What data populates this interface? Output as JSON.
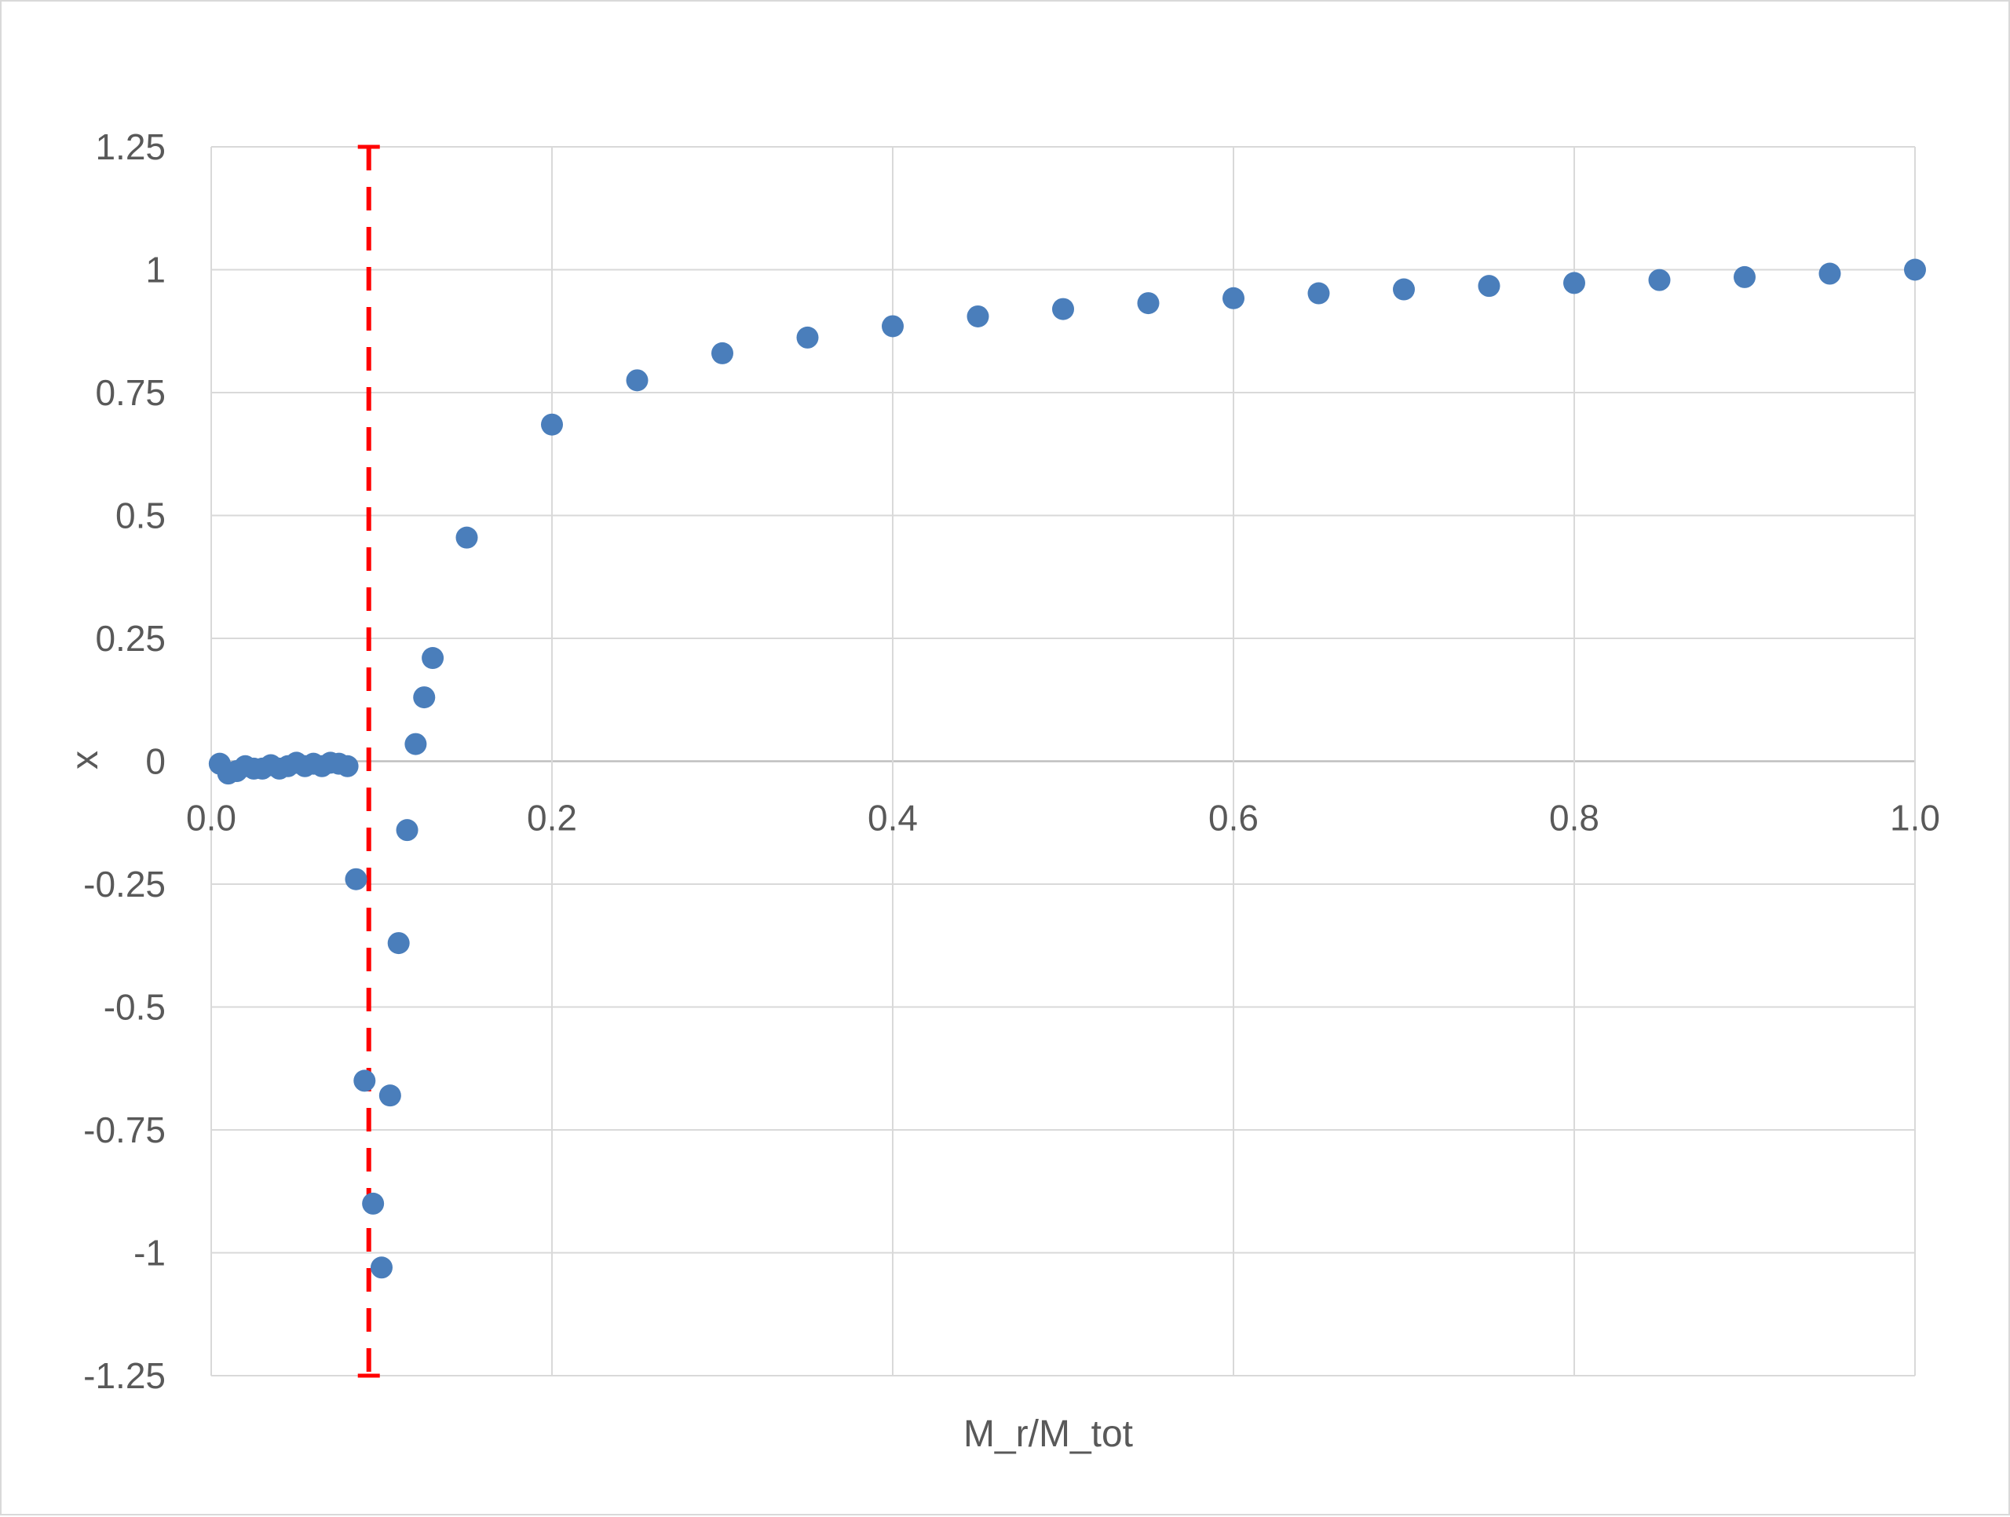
{
  "chart_data": {
    "type": "scatter",
    "title": "",
    "xlabel": "M_r/M_tot",
    "ylabel": "x",
    "xlim": [
      0,
      1
    ],
    "ylim": [
      -1.25,
      1.25
    ],
    "x_ticks": [
      "0.0",
      "0.2",
      "0.4",
      "0.6",
      "0.8",
      "1.0"
    ],
    "x_tick_values": [
      0,
      0.2,
      0.4,
      0.6,
      0.8,
      1.0
    ],
    "y_ticks": [
      "1.25",
      "1",
      "0.75",
      "0.5",
      "0.25",
      "0",
      "-0.25",
      "-0.5",
      "-0.75",
      "-1",
      "-1.25"
    ],
    "y_tick_values": [
      1.25,
      1,
      0.75,
      0.5,
      0.25,
      0,
      -0.25,
      -0.5,
      -0.75,
      -1,
      -1.25
    ],
    "grid": true,
    "legend": "none",
    "marker_color": "#4a7ebb",
    "reference_line": {
      "style": "dashed",
      "color": "#ff0000",
      "x": 0.0925,
      "y_range": [
        -1.25,
        1.25
      ]
    },
    "series": [
      {
        "points": [
          [
            0.005,
            -0.005
          ],
          [
            0.01,
            -0.025
          ],
          [
            0.015,
            -0.02
          ],
          [
            0.02,
            -0.01
          ],
          [
            0.025,
            -0.015
          ],
          [
            0.03,
            -0.015
          ],
          [
            0.035,
            -0.008
          ],
          [
            0.04,
            -0.015
          ],
          [
            0.045,
            -0.01
          ],
          [
            0.05,
            -0.003
          ],
          [
            0.055,
            -0.01
          ],
          [
            0.06,
            -0.005
          ],
          [
            0.065,
            -0.01
          ],
          [
            0.07,
            -0.003
          ],
          [
            0.075,
            -0.005
          ],
          [
            0.08,
            -0.01
          ],
          [
            0.085,
            -0.24
          ],
          [
            0.09,
            -0.65
          ],
          [
            0.095,
            -0.9
          ],
          [
            0.1,
            -1.03
          ],
          [
            0.105,
            -0.68
          ],
          [
            0.11,
            -0.37
          ],
          [
            0.115,
            -0.14
          ],
          [
            0.12,
            0.035
          ],
          [
            0.125,
            0.13
          ],
          [
            0.13,
            0.21
          ],
          [
            0.15,
            0.455
          ],
          [
            0.2,
            0.685
          ],
          [
            0.25,
            0.775
          ],
          [
            0.3,
            0.83
          ],
          [
            0.35,
            0.862
          ],
          [
            0.4,
            0.885
          ],
          [
            0.45,
            0.905
          ],
          [
            0.5,
            0.92
          ],
          [
            0.55,
            0.932
          ],
          [
            0.6,
            0.942
          ],
          [
            0.65,
            0.952
          ],
          [
            0.7,
            0.96
          ],
          [
            0.75,
            0.967
          ],
          [
            0.8,
            0.973
          ],
          [
            0.85,
            0.979
          ],
          [
            0.9,
            0.985
          ],
          [
            0.95,
            0.992
          ],
          [
            1.0,
            1.0
          ]
        ]
      }
    ]
  }
}
